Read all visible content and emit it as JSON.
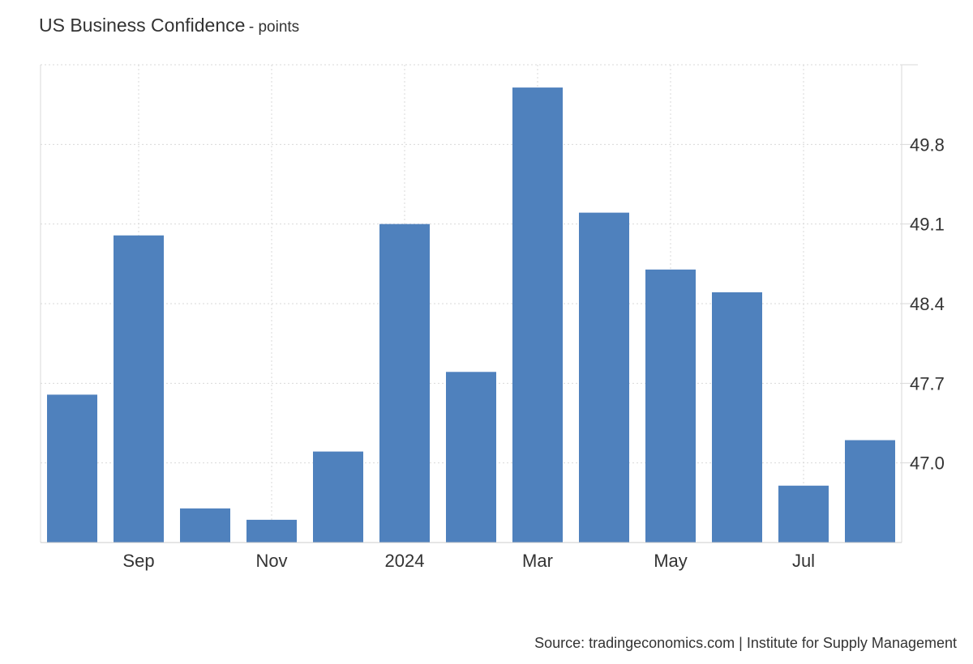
{
  "chart_data": {
    "type": "bar",
    "title": "US Business Confidence",
    "unit_label": "- points",
    "categories": [
      "Aug 2023",
      "Sep 2023",
      "Oct 2023",
      "Nov 2023",
      "Dec 2023",
      "Jan 2024",
      "Feb 2024",
      "Mar 2024",
      "Apr 2024",
      "May 2024",
      "Jun 2024",
      "Jul 2024",
      "Aug 2024"
    ],
    "values": [
      47.6,
      49.0,
      46.6,
      46.5,
      47.1,
      49.1,
      47.8,
      50.3,
      49.2,
      48.7,
      48.5,
      46.8,
      47.2
    ],
    "x_tick_labels": [
      {
        "category": "Sep 2023",
        "label": "Sep"
      },
      {
        "category": "Nov 2023",
        "label": "Nov"
      },
      {
        "category": "Jan 2024",
        "label": "2024"
      },
      {
        "category": "Mar 2024",
        "label": "Mar"
      },
      {
        "category": "May 2024",
        "label": "May"
      },
      {
        "category": "Jul 2024",
        "label": "Jul"
      }
    ],
    "y_ticks": [
      47.0,
      47.7,
      48.4,
      49.1,
      49.8
    ],
    "ylim": [
      46.3,
      50.5
    ],
    "y_axis_side": "right",
    "grid": true,
    "bar_color": "#4f81bd",
    "grid_color": "#d9d9d9",
    "source": "Source: tradingeconomics.com | Institute for Supply Management"
  }
}
